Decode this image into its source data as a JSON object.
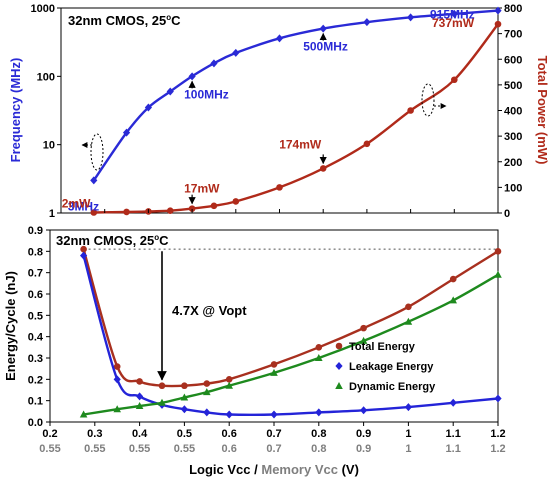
{
  "colors": {
    "frequency": "#2a2ad6",
    "power": "#b02a1a",
    "total_energy": "#a8301f",
    "leakage_energy": "#2424d8",
    "dynamic_energy": "#1e8a1e",
    "axis": "#000000",
    "secondary_tick": "#7f7f7f",
    "reference_line": "#808080"
  },
  "chart_data": [
    {
      "type": "line",
      "annotation_title": "32nm CMOS, 25°C",
      "ylabel_left": "Frequency (MHz)",
      "ylabel_right": "Total Power (mW)",
      "yscale_left": "log",
      "ylim_left": [
        1,
        1000
      ],
      "ylim_right": [
        0,
        800
      ],
      "yticks_left": [
        "1",
        "10",
        "100",
        "1000"
      ],
      "yticks_right": [
        "0",
        "100",
        "200",
        "300",
        "400",
        "500",
        "600",
        "700",
        "800"
      ],
      "xlim": [
        0.2,
        1.2
      ],
      "series": [
        {
          "key": "frequency",
          "axis": "left",
          "x": [
            0.275,
            0.35,
            0.4,
            0.45,
            0.5,
            0.55,
            0.6,
            0.7,
            0.8,
            0.9,
            1.0,
            1.1,
            1.2
          ],
          "y": [
            3,
            15,
            35,
            60,
            100,
            155,
            220,
            360,
            500,
            620,
            730,
            820,
            915
          ]
        },
        {
          "key": "power",
          "axis": "right",
          "x": [
            0.275,
            0.35,
            0.4,
            0.45,
            0.5,
            0.55,
            0.6,
            0.7,
            0.8,
            0.9,
            1.0,
            1.1,
            1.2
          ],
          "y": [
            2,
            4,
            6,
            9,
            17,
            28,
            45,
            100,
            174,
            270,
            400,
            520,
            737
          ]
        }
      ],
      "annotations": [
        {
          "text": "3MHz",
          "series": "frequency",
          "x": 0.275,
          "y": 3
        },
        {
          "text": "100MHz",
          "series": "frequency",
          "x": 0.5,
          "y": 100
        },
        {
          "text": "500MHz",
          "series": "frequency",
          "x": 0.8,
          "y": 500
        },
        {
          "text": "915MHz",
          "series": "frequency",
          "x": 1.2,
          "y": 915
        },
        {
          "text": "2mW",
          "series": "power",
          "x": 0.275,
          "y": 2
        },
        {
          "text": "17mW",
          "series": "power",
          "x": 0.5,
          "y": 17
        },
        {
          "text": "174mW",
          "series": "power",
          "x": 0.8,
          "y": 174
        },
        {
          "text": "737mW",
          "series": "power",
          "x": 1.2,
          "y": 737
        }
      ]
    },
    {
      "type": "line",
      "annotation_title": "32nm CMOS, 25°C",
      "ylabel": "Energy/Cycle (nJ)",
      "ylim": [
        0,
        0.9
      ],
      "yticks": [
        "0.0",
        "0.1",
        "0.2",
        "0.3",
        "0.4",
        "0.5",
        "0.6",
        "0.7",
        "0.8",
        "0.9"
      ],
      "xlabel_primary": "Logic Vcc",
      "xlabel_separator": "/",
      "xlabel_secondary": "Memory Vcc",
      "xlabel_unit": "(V)",
      "xlim": [
        0.2,
        1.2
      ],
      "xticks_logic": [
        "0.2",
        "0.3",
        "0.4",
        "0.5",
        "0.6",
        "0.7",
        "0.8",
        "0.9",
        "1",
        "1.1",
        "1.2"
      ],
      "xticks_memory": [
        "0.55",
        "0.55",
        "0.55",
        "0.55",
        "0.6",
        "0.7",
        "0.8",
        "0.9",
        "1",
        "1.1",
        "1.2"
      ],
      "callout": "4.7X @ Vopt",
      "legend_position": "right",
      "series": [
        {
          "key": "total_energy",
          "name": "Total Energy",
          "marker": "circle",
          "x": [
            0.275,
            0.35,
            0.4,
            0.45,
            0.5,
            0.55,
            0.6,
            0.7,
            0.8,
            0.9,
            1.0,
            1.1,
            1.2
          ],
          "y": [
            0.81,
            0.26,
            0.19,
            0.17,
            0.17,
            0.18,
            0.2,
            0.27,
            0.35,
            0.44,
            0.54,
            0.67,
            0.8
          ]
        },
        {
          "key": "leakage_energy",
          "name": "Leakage Energy",
          "marker": "diamond",
          "x": [
            0.275,
            0.35,
            0.4,
            0.45,
            0.5,
            0.55,
            0.6,
            0.7,
            0.8,
            0.9,
            1.0,
            1.1,
            1.2
          ],
          "y": [
            0.78,
            0.2,
            0.12,
            0.08,
            0.06,
            0.045,
            0.035,
            0.035,
            0.045,
            0.055,
            0.07,
            0.09,
            0.11
          ]
        },
        {
          "key": "dynamic_energy",
          "name": "Dynamic Energy",
          "marker": "triangle",
          "x": [
            0.275,
            0.35,
            0.4,
            0.45,
            0.5,
            0.55,
            0.6,
            0.7,
            0.8,
            0.9,
            1.0,
            1.1,
            1.2
          ],
          "y": [
            0.035,
            0.06,
            0.075,
            0.09,
            0.115,
            0.14,
            0.17,
            0.23,
            0.3,
            0.38,
            0.47,
            0.57,
            0.69
          ]
        }
      ]
    }
  ]
}
